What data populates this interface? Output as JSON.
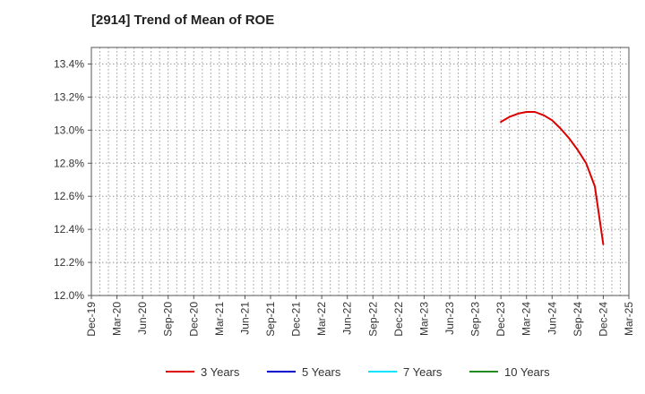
{
  "chart_data": {
    "type": "line",
    "title": "[2914]  Trend of Mean of ROE",
    "xlabel": "",
    "ylabel": "",
    "ylim": [
      12.0,
      13.5
    ],
    "yticks": [
      12.0,
      12.2,
      12.4,
      12.6,
      12.8,
      13.0,
      13.2,
      13.4
    ],
    "ytick_labels": [
      "12.0%",
      "12.2%",
      "12.4%",
      "12.6%",
      "12.8%",
      "13.0%",
      "13.2%",
      "13.4%"
    ],
    "x_categories": [
      "Dec-19",
      "Mar-20",
      "Jun-20",
      "Sep-20",
      "Dec-20",
      "Mar-21",
      "Jun-21",
      "Sep-21",
      "Dec-21",
      "Mar-22",
      "Jun-22",
      "Sep-22",
      "Dec-22",
      "Mar-23",
      "Jun-23",
      "Sep-23",
      "Dec-23",
      "Mar-24",
      "Jun-24",
      "Sep-24",
      "Dec-24",
      "Mar-25"
    ],
    "grid": true,
    "legend_position": "bottom",
    "series": [
      {
        "name": "3 Years",
        "color": "#dd0000",
        "points": [
          {
            "x": 16,
            "y": 13.05
          },
          {
            "x": 16.33,
            "y": 13.08
          },
          {
            "x": 16.67,
            "y": 13.1
          },
          {
            "x": 17,
            "y": 13.11
          },
          {
            "x": 17.33,
            "y": 13.11
          },
          {
            "x": 17.67,
            "y": 13.09
          },
          {
            "x": 18,
            "y": 13.06
          },
          {
            "x": 18.33,
            "y": 13.01
          },
          {
            "x": 18.67,
            "y": 12.95
          },
          {
            "x": 19,
            "y": 12.88
          },
          {
            "x": 19.33,
            "y": 12.8
          },
          {
            "x": 19.67,
            "y": 12.66
          },
          {
            "x": 20,
            "y": 12.31
          }
        ]
      },
      {
        "name": "5 Years",
        "color": "#0000cc",
        "points": []
      },
      {
        "name": "7 Years",
        "color": "#00e5ff",
        "points": []
      },
      {
        "name": "10 Years",
        "color": "#228b22",
        "points": []
      }
    ]
  }
}
